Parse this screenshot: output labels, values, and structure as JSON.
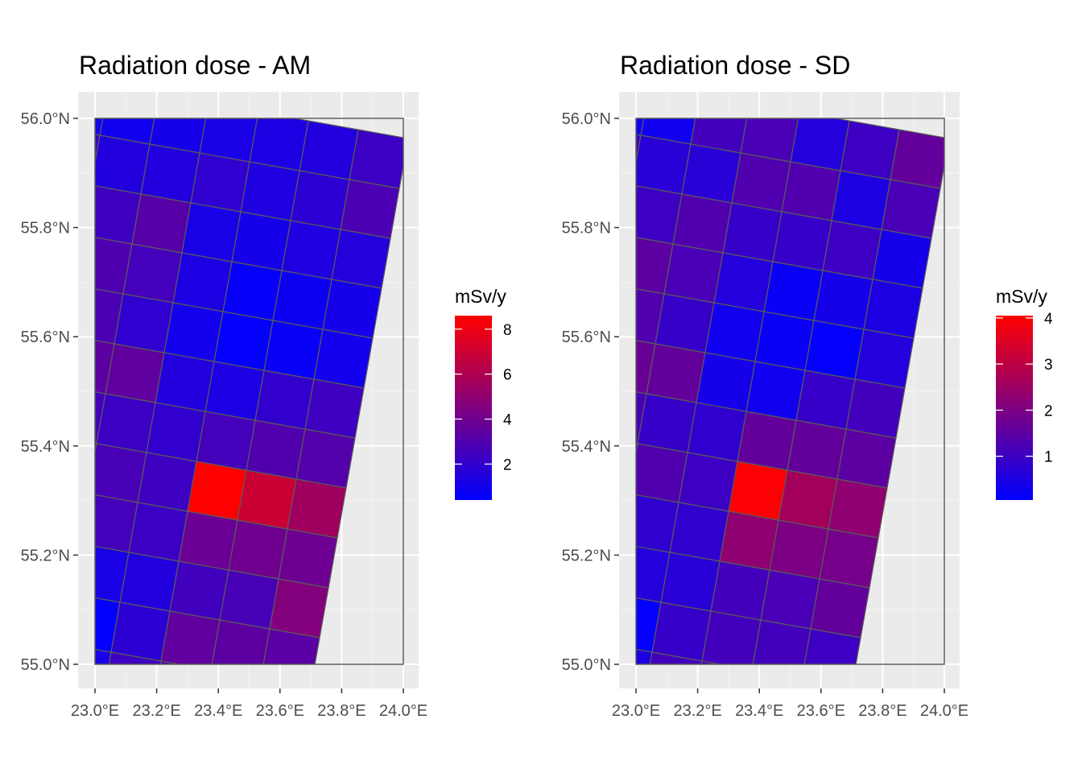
{
  "chart_data": [
    {
      "type": "heatmap",
      "title": "Radiation dose - AM",
      "xlabel": "",
      "ylabel": "",
      "x_ticks": [
        "23.0°E",
        "23.2°E",
        "23.4°E",
        "23.6°E",
        "23.8°E",
        "24.0°E"
      ],
      "y_ticks": [
        "55.0°N",
        "55.2°N",
        "55.4°N",
        "55.6°N",
        "55.8°N",
        "56.0°N"
      ],
      "xlim": [
        23.0,
        24.0
      ],
      "ylim": [
        55.0,
        56.0
      ],
      "grid": true,
      "legend": {
        "title": "mSv/y",
        "position": "right",
        "ticks": [
          2,
          4,
          6,
          8
        ],
        "range": [
          0.4,
          8.6
        ],
        "low_color": "#0000FF",
        "high_color": "#FF0000"
      },
      "grid_rows_north_to_south": 12,
      "grid_cols_west_to_east": 7,
      "values": [
        [
          1.0,
          0.9,
          1.1,
          1.2,
          1.3,
          1.5,
          2.3
        ],
        [
          2.3,
          1.5,
          1.5,
          1.9,
          1.4,
          1.8,
          2.8
        ],
        [
          1.8,
          2.4,
          3.2,
          1.2,
          1.1,
          1.4,
          1.6
        ],
        [
          1.6,
          2.9,
          2.6,
          1.3,
          0.6,
          0.8,
          1.1
        ],
        [
          2.4,
          2.8,
          1.9,
          1.0,
          0.5,
          0.7,
          1.0
        ],
        [
          1.3,
          3.4,
          3.5,
          1.5,
          1.3,
          2.0,
          2.4
        ],
        [
          2.6,
          2.6,
          2.3,
          2.0,
          2.6,
          3.0,
          3.1
        ],
        [
          1.6,
          3.1,
          2.7,
          2.4,
          8.6,
          6.9,
          5.5
        ],
        [
          1.8,
          2.3,
          2.6,
          2.3,
          3.8,
          4.0,
          3.9
        ],
        [
          2.0,
          2.1,
          1.2,
          1.5,
          2.5,
          2.7,
          4.6
        ],
        [
          1.7,
          1.0,
          0.5,
          1.8,
          3.5,
          3.4,
          3.3
        ],
        [
          1.5,
          1.2,
          1.2,
          2.4,
          2.7,
          2.9,
          2.6
        ]
      ]
    },
    {
      "type": "heatmap",
      "title": "Radiation dose - SD",
      "xlabel": "",
      "ylabel": "",
      "x_ticks": [
        "23.0°E",
        "23.2°E",
        "23.4°E",
        "23.6°E",
        "23.8°E",
        "24.0°E"
      ],
      "y_ticks": [
        "55.0°N",
        "55.2°N",
        "55.4°N",
        "55.6°N",
        "55.8°N",
        "56.0°N"
      ],
      "xlim": [
        23.0,
        24.0
      ],
      "ylim": [
        55.0,
        56.0
      ],
      "grid": true,
      "legend": {
        "title": "mSv/y",
        "position": "right",
        "ticks": [
          1,
          2,
          3,
          4
        ],
        "range": [
          0.05,
          4.05
        ],
        "low_color": "#0000FF",
        "high_color": "#FF0000"
      },
      "grid_rows_north_to_south": 12,
      "grid_cols_west_to_east": 7,
      "values": [
        [
          0.3,
          0.3,
          1.1,
          1.2,
          0.6,
          1.0,
          1.6
        ],
        [
          1.0,
          0.7,
          0.7,
          1.3,
          1.3,
          0.5,
          1.2
        ],
        [
          0.6,
          1.0,
          1.3,
          0.9,
          0.9,
          1.0,
          0.4
        ],
        [
          0.5,
          1.5,
          1.2,
          0.6,
          0.2,
          0.4,
          0.5
        ],
        [
          0.9,
          1.3,
          0.9,
          0.3,
          0.2,
          0.1,
          0.6
        ],
        [
          0.8,
          1.7,
          1.6,
          0.4,
          0.3,
          0.9,
          1.1
        ],
        [
          1.0,
          1.2,
          0.9,
          0.8,
          1.6,
          1.6,
          1.5
        ],
        [
          0.3,
          1.4,
          1.3,
          1.0,
          4.0,
          2.6,
          2.3
        ],
        [
          1.0,
          0.9,
          0.8,
          0.8,
          2.3,
          2.0,
          1.9
        ],
        [
          0.8,
          0.9,
          0.6,
          0.7,
          1.1,
          1.2,
          1.6
        ],
        [
          0.8,
          0.2,
          0.1,
          0.9,
          1.1,
          1.1,
          1.0
        ],
        [
          0.6,
          0.3,
          0.5,
          1.1,
          1.0,
          1.3,
          1.1
        ]
      ]
    }
  ]
}
